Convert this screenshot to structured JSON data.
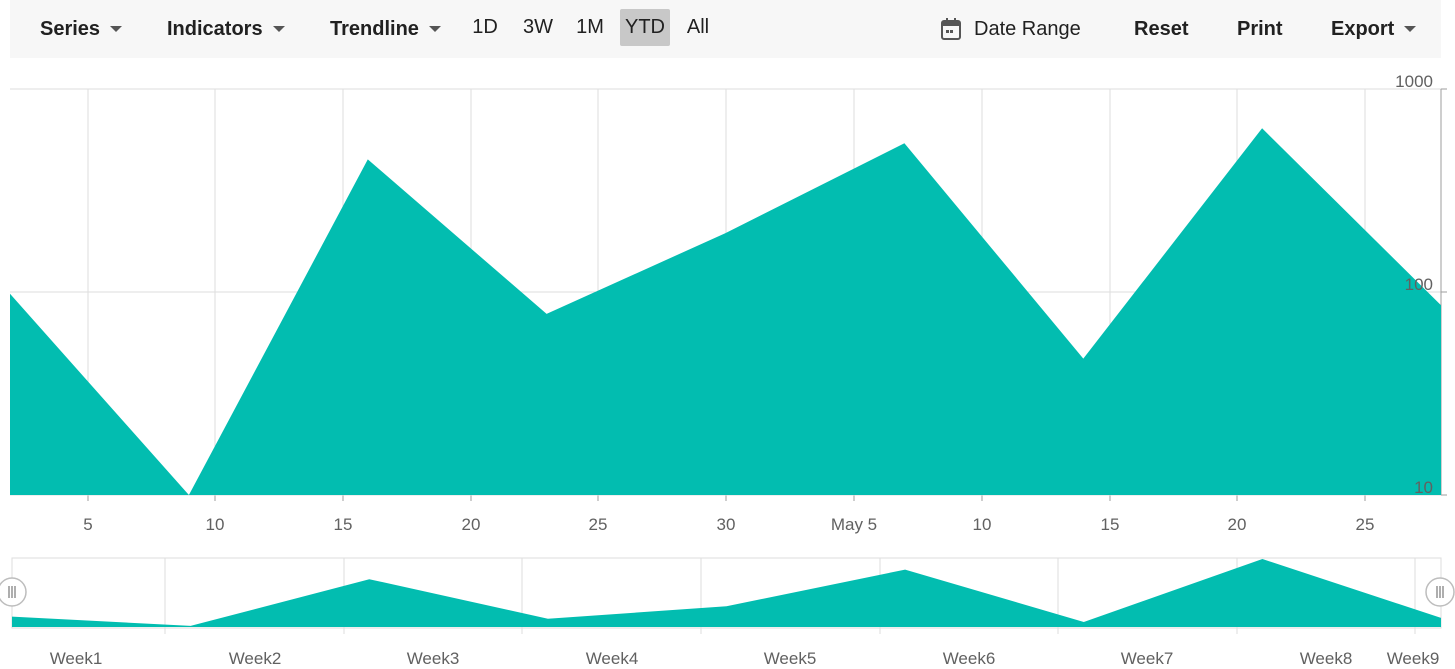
{
  "toolbar": {
    "series": "Series",
    "indicators": "Indicators",
    "trendline": "Trendline",
    "periods": [
      "1D",
      "3W",
      "1M",
      "YTD",
      "All"
    ],
    "active_period": "YTD",
    "date_range": "Date Range",
    "reset": "Reset",
    "print": "Print",
    "export": "Export"
  },
  "colors": {
    "area": "#02bdb0",
    "grid": "#dddddd",
    "toolbar_bg": "#f7f7f7"
  },
  "chart_data": [
    {
      "type": "area",
      "x_tick_labels": [
        "5",
        "10",
        "15",
        "20",
        "25",
        "30",
        "May 5",
        "10",
        "15",
        "20",
        "25"
      ],
      "y_scale": "log",
      "ylim": [
        10,
        1000
      ],
      "y_tick_labels": [
        "1000",
        "100",
        "10"
      ],
      "y_ticks": [
        1000,
        100,
        10
      ],
      "x": [
        "Apr 2",
        "Apr 9",
        "Apr 16",
        "Apr 23",
        "Apr 30",
        "May 7",
        "May 14",
        "May 21",
        "May 28"
      ],
      "values": [
        98,
        10,
        450,
        78,
        195,
        540,
        47,
        640,
        86
      ],
      "grid": true
    },
    {
      "type": "area",
      "role": "navigator",
      "x_tick_labels": [
        "Week1",
        "Week2",
        "Week3",
        "Week4",
        "Week5",
        "Week6",
        "Week7",
        "Week8",
        "Week9"
      ],
      "x": [
        "Apr 2",
        "Apr 9",
        "Apr 16",
        "Apr 23",
        "Apr 30",
        "May 7",
        "May 14",
        "May 21",
        "May 28"
      ],
      "values": [
        98,
        10,
        450,
        78,
        195,
        540,
        47,
        640,
        86
      ]
    }
  ]
}
